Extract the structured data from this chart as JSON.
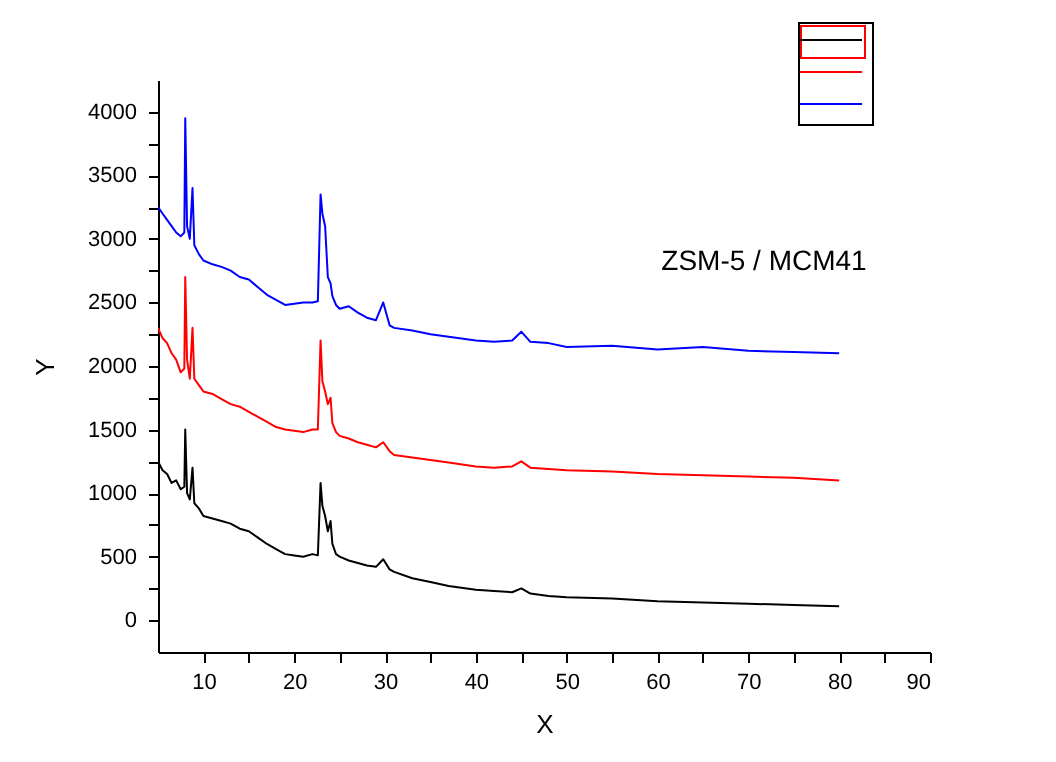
{
  "chart_data": {
    "type": "line",
    "xlabel": "X",
    "ylabel": "Y",
    "annotations": [
      "ZSM-5 / MCM41"
    ],
    "xlim": [
      5,
      90
    ],
    "ylim": [
      -250,
      4250
    ],
    "xticks": [
      10,
      {
        "value": 15,
        "label": null
      },
      20,
      {
        "value": 25,
        "label": null
      },
      30,
      {
        "value": 35,
        "label": null
      },
      40,
      {
        "value": 45,
        "label": null
      },
      50,
      {
        "value": 55,
        "label": null
      },
      60,
      {
        "value": 65,
        "label": null
      },
      70,
      {
        "value": 75,
        "label": null
      },
      80,
      {
        "value": 85,
        "label": null
      },
      90
    ],
    "yticks": [
      0,
      {
        "value": 250,
        "label": null
      },
      500,
      {
        "value": 750,
        "label": null
      },
      1000,
      {
        "value": 1250,
        "label": null
      },
      1500,
      {
        "value": 1750,
        "label": null
      },
      2000,
      {
        "value": 2250,
        "label": null
      },
      2500,
      {
        "value": 2750,
        "label": null
      },
      3000,
      {
        "value": 3250,
        "label": null
      },
      3500,
      {
        "value": 3750,
        "label": null
      },
      4000
    ],
    "series": [
      {
        "color": "#000000",
        "x": [
          5,
          5.5,
          6,
          6.5,
          7,
          7.5,
          7.9,
          8,
          8.2,
          8.5,
          8.8,
          9,
          9.5,
          10,
          11,
          12,
          13,
          14,
          15,
          16,
          17,
          18,
          19,
          20,
          21,
          22,
          22.6,
          22.9,
          23.1,
          23.4,
          23.7,
          24,
          24.2,
          24.6,
          25,
          26,
          27,
          28,
          29,
          29.8,
          30.5,
          31,
          33,
          35,
          37,
          40,
          42,
          44,
          45,
          46,
          48,
          50,
          55,
          60,
          65,
          70,
          75,
          80
        ],
        "values": [
          1250,
          1180,
          1150,
          1080,
          1100,
          1030,
          1050,
          1500,
          1000,
          950,
          1200,
          920,
          880,
          820,
          800,
          780,
          760,
          720,
          700,
          650,
          600,
          560,
          520,
          510,
          500,
          520,
          510,
          1080,
          900,
          820,
          700,
          780,
          600,
          520,
          500,
          470,
          450,
          430,
          420,
          480,
          400,
          380,
          330,
          300,
          270,
          240,
          230,
          220,
          250,
          210,
          190,
          180,
          170,
          150,
          140,
          130,
          120,
          110
        ]
      },
      {
        "color": "#ff0000",
        "x": [
          5,
          5.5,
          6,
          6.5,
          7,
          7.5,
          7.9,
          8,
          8.2,
          8.5,
          8.8,
          9,
          9.5,
          10,
          11,
          12,
          13,
          14,
          15,
          16,
          17,
          18,
          19,
          20,
          21,
          22,
          22.6,
          22.9,
          23.1,
          23.4,
          23.7,
          24,
          24.2,
          24.6,
          25,
          26,
          27,
          28,
          29,
          29.8,
          30.5,
          31,
          33,
          35,
          37,
          40,
          42,
          44,
          45,
          46,
          48,
          50,
          55,
          60,
          65,
          70,
          75,
          80
        ],
        "values": [
          2300,
          2220,
          2180,
          2100,
          2050,
          1950,
          1980,
          2700,
          2050,
          1900,
          2300,
          1900,
          1850,
          1800,
          1780,
          1740,
          1700,
          1680,
          1640,
          1600,
          1560,
          1520,
          1500,
          1490,
          1480,
          1500,
          1500,
          2200,
          1880,
          1800,
          1700,
          1750,
          1550,
          1480,
          1450,
          1430,
          1400,
          1380,
          1360,
          1400,
          1330,
          1300,
          1280,
          1260,
          1240,
          1210,
          1200,
          1210,
          1250,
          1200,
          1190,
          1180,
          1170,
          1150,
          1140,
          1130,
          1120,
          1100
        ]
      },
      {
        "color": "#0000ff",
        "x": [
          5,
          5.5,
          6,
          6.5,
          7,
          7.5,
          7.9,
          8,
          8.2,
          8.5,
          8.8,
          9,
          9.5,
          10,
          11,
          12,
          13,
          14,
          15,
          16,
          17,
          18,
          19,
          20,
          21,
          22,
          22.6,
          22.9,
          23.1,
          23.4,
          23.7,
          24,
          24.2,
          24.6,
          25,
          26,
          27,
          28,
          29,
          29.8,
          30.5,
          31,
          33,
          35,
          37,
          40,
          42,
          44,
          45,
          46,
          48,
          50,
          55,
          60,
          65,
          70,
          75,
          80
        ],
        "values": [
          3250,
          3200,
          3150,
          3100,
          3050,
          3020,
          3050,
          3950,
          3100,
          3000,
          3400,
          2950,
          2880,
          2830,
          2800,
          2780,
          2750,
          2700,
          2680,
          2620,
          2560,
          2520,
          2480,
          2490,
          2500,
          2500,
          2510,
          3350,
          3200,
          3100,
          2700,
          2650,
          2550,
          2480,
          2450,
          2470,
          2420,
          2380,
          2360,
          2500,
          2320,
          2300,
          2280,
          2250,
          2230,
          2200,
          2190,
          2200,
          2270,
          2190,
          2180,
          2150,
          2160,
          2130,
          2150,
          2120,
          2110,
          2100
        ]
      }
    ]
  }
}
